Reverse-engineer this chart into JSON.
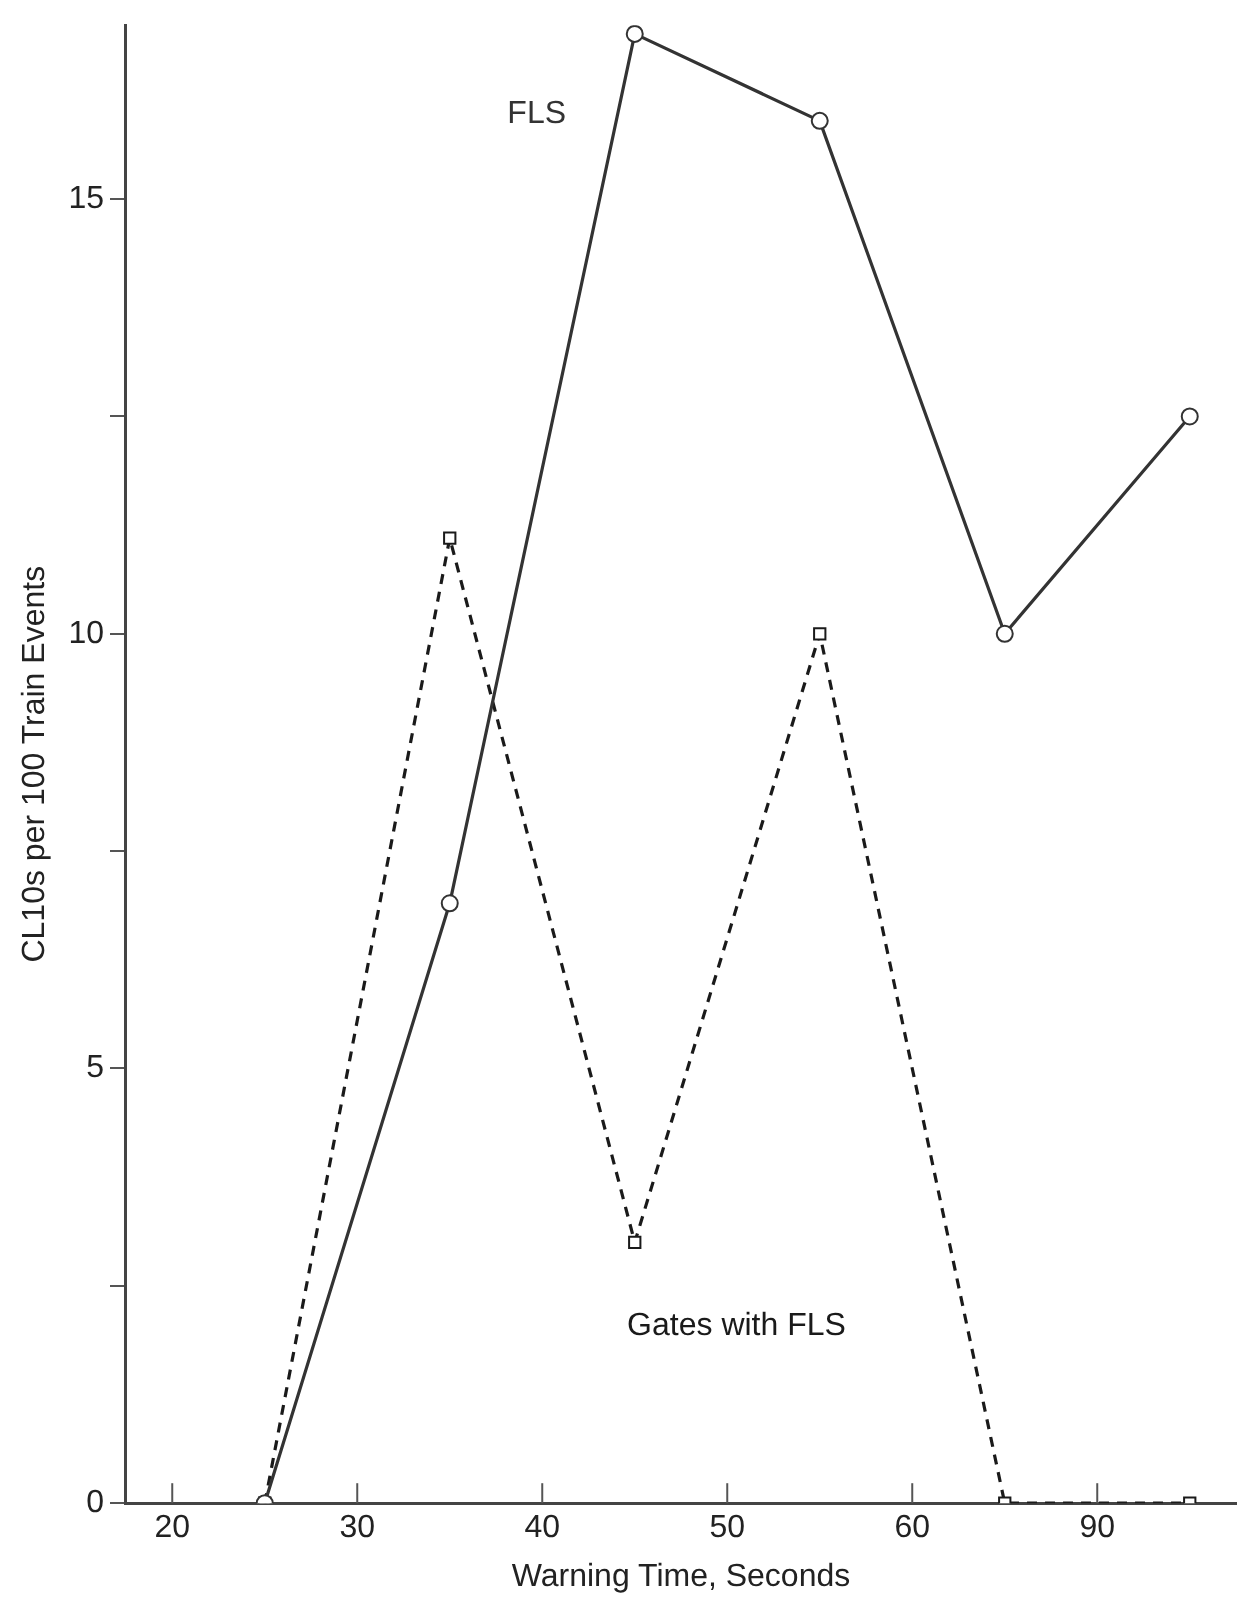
{
  "chart_data": {
    "type": "line",
    "xlabel": "Warning Time, Seconds",
    "ylabel": "CL10s per 100 Train Events",
    "categories": [
      "20",
      null,
      "30",
      null,
      "40",
      null,
      "50",
      null,
      "60",
      null,
      "90",
      null
    ],
    "series": [
      {
        "name": "FLS",
        "color": "#333333",
        "marker": "circle",
        "line_style": "solid",
        "values": [
          null,
          0,
          null,
          6.9,
          null,
          16.9,
          null,
          15.9,
          null,
          10,
          null,
          12.5
        ]
      },
      {
        "name": "Gates with FLS",
        "color": "#1a1a1a",
        "marker": "square",
        "line_style": "dashed",
        "values": [
          null,
          0,
          null,
          11.1,
          null,
          3,
          null,
          10,
          null,
          0,
          null,
          0
        ]
      }
    ],
    "ylim": [
      0,
      17
    ],
    "yticks": [
      0,
      {
        "value": 2.5,
        "label": null
      },
      5,
      {
        "value": 7.5,
        "label": null
      },
      10,
      {
        "value": 12.5,
        "label": null
      },
      15
    ],
    "grid": false,
    "legend": false
  }
}
